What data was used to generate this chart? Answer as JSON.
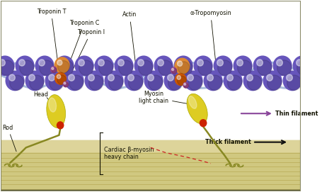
{
  "fig_width": 4.56,
  "fig_height": 2.71,
  "dpi": 100,
  "bg_outer": "#ffffff",
  "bg_inner": "#e8e8d0",
  "border_color": "#888866",
  "thick_filament_bg": "#d8d0a0",
  "stripe_color": "#c8c080",
  "actin_color": "#6655bb",
  "actin_mid": "#7766cc",
  "actin_highlight": "#9988ee",
  "troponin_T_color": "#dd8833",
  "troponin_C_color": "#cc5500",
  "troponin_small_color": "#994488",
  "tropomyosin_color": "#aabbdd",
  "myosin_head_color": "#ddcc22",
  "myosin_head_edge": "#aaaa00",
  "myosin_neck_color": "#cc2200",
  "myosin_rod_color": "#888822",
  "label_color": "#111100",
  "label_fontsize": 5.8,
  "arrow_color_purple": "#884499",
  "arrow_color_black": "#111111",
  "dashed_color": "#cc2222",
  "labels": {
    "troponin_T": "Troponin T",
    "troponin_C": "Troponin C",
    "troponin_I": "Troponin I",
    "actin": "Actin",
    "alpha_tropomyosin": "α-Tropomyosin",
    "myosin_light_chain": "Myosin\nlight chain",
    "cardiac_myosin": "Cardiac β-myosin\nheavy chain",
    "head": "Head",
    "rod": "Rod",
    "thin_filament": "Thin filament",
    "thick_filament": "Thick filament"
  }
}
